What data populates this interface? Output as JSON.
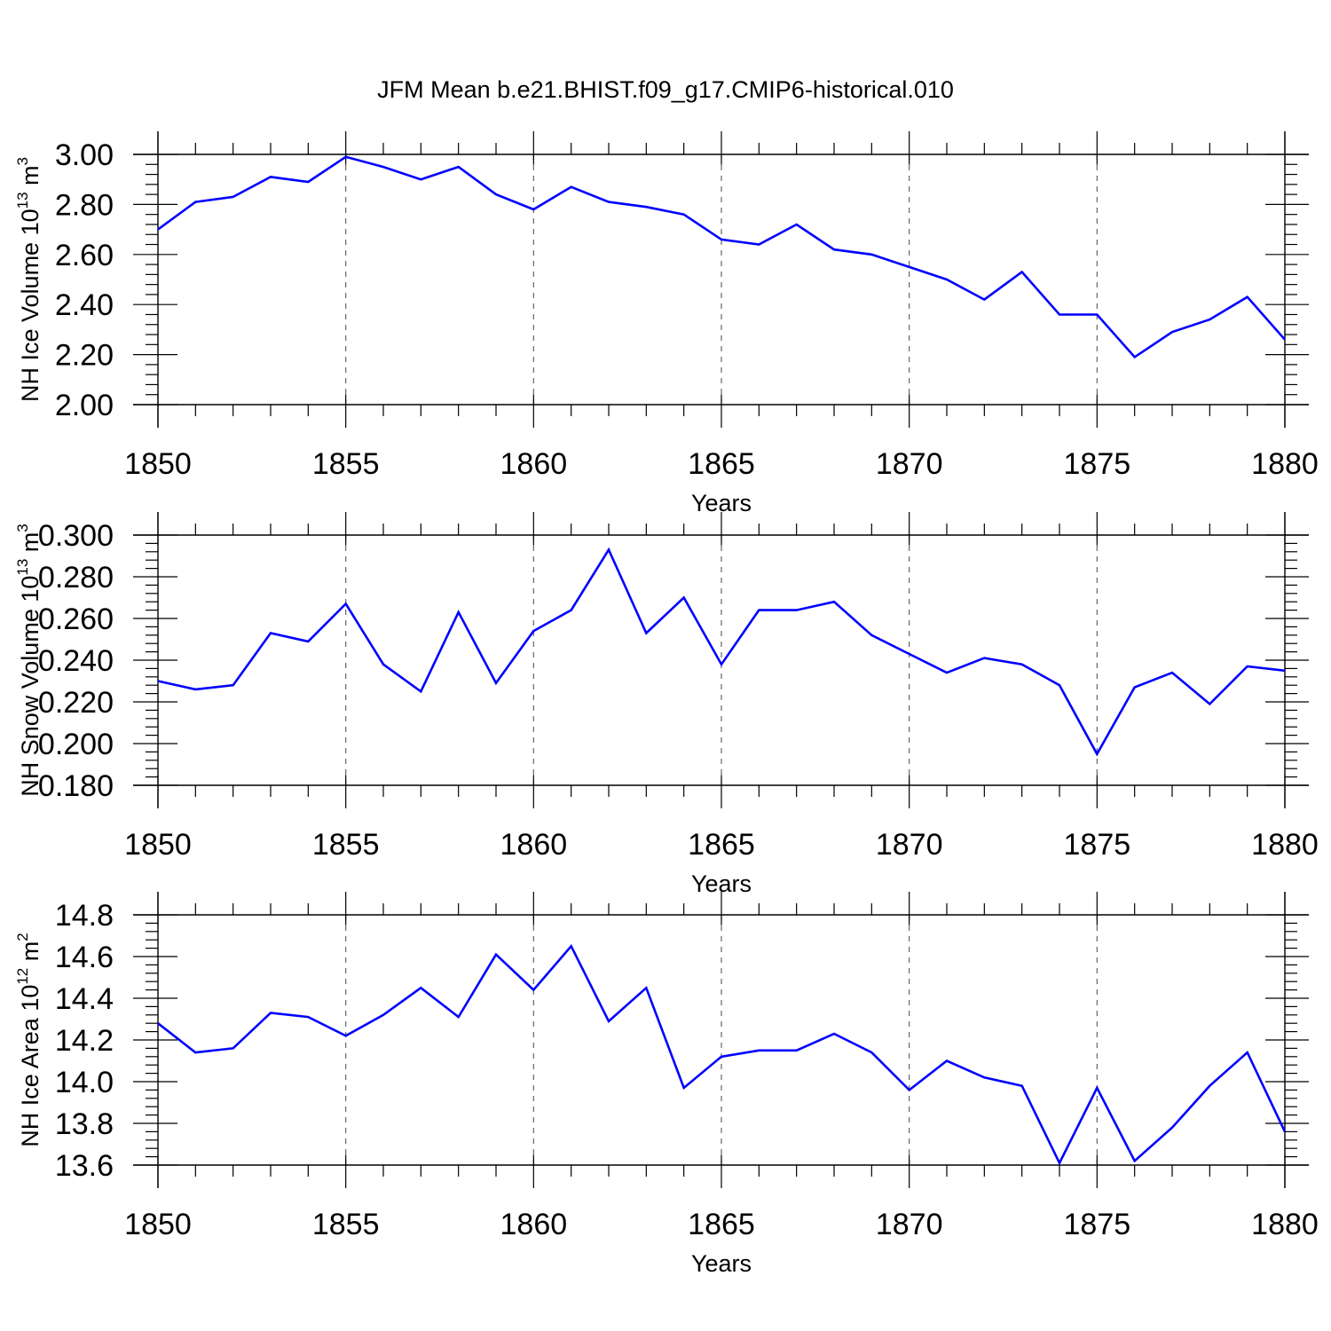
{
  "title": "JFM Mean b.e21.BHIST.f09_g17.CMIP6-historical.010",
  "colors": {
    "line": "#0000ff",
    "grid": "#666666",
    "axis": "#000000"
  },
  "chart_data": [
    {
      "type": "line",
      "xlabel": "Years",
      "ylabel": {
        "text": "NH Ice Volume 10",
        "exp": "13",
        "unit": " m",
        "unit_exp": "3"
      },
      "xlim": [
        1850,
        1880
      ],
      "ylim": [
        2.0,
        3.0
      ],
      "x_ticks": [
        1850,
        1855,
        1860,
        1865,
        1870,
        1875,
        1880
      ],
      "x_tick_labels": [
        "1850",
        "1855",
        "1860",
        "1865",
        "1870",
        "1875",
        "1880"
      ],
      "y_ticks": [
        2.0,
        2.2,
        2.4,
        2.6,
        2.8,
        3.0
      ],
      "y_tick_labels": [
        "2.00",
        "2.20",
        "2.40",
        "2.60",
        "2.80",
        "3.00"
      ],
      "grid": "vertical dashed at major x ticks",
      "x": [
        1850,
        1851,
        1852,
        1853,
        1854,
        1855,
        1856,
        1857,
        1858,
        1859,
        1860,
        1861,
        1862,
        1863,
        1864,
        1865,
        1866,
        1867,
        1868,
        1869,
        1870,
        1871,
        1872,
        1873,
        1874,
        1875,
        1876,
        1877,
        1878,
        1879,
        1880
      ],
      "values": [
        2.7,
        2.81,
        2.83,
        2.91,
        2.89,
        2.99,
        2.95,
        2.9,
        2.95,
        2.84,
        2.78,
        2.87,
        2.81,
        2.79,
        2.76,
        2.66,
        2.64,
        2.72,
        2.62,
        2.6,
        2.55,
        2.5,
        2.42,
        2.53,
        2.36,
        2.36,
        2.19,
        2.29,
        2.34,
        2.43,
        2.26
      ]
    },
    {
      "type": "line",
      "xlabel": "Years",
      "ylabel": {
        "text": "NH Snow Volume 10",
        "exp": "13",
        "unit": " m",
        "unit_exp": "3"
      },
      "xlim": [
        1850,
        1880
      ],
      "ylim": [
        0.18,
        0.3
      ],
      "x_ticks": [
        1850,
        1855,
        1860,
        1865,
        1870,
        1875,
        1880
      ],
      "x_tick_labels": [
        "1850",
        "1855",
        "1860",
        "1865",
        "1870",
        "1875",
        "1880"
      ],
      "y_ticks": [
        0.18,
        0.2,
        0.22,
        0.24,
        0.26,
        0.28,
        0.3
      ],
      "y_tick_labels": [
        "0.180",
        "0.200",
        "0.220",
        "0.240",
        "0.260",
        "0.280",
        "0.300"
      ],
      "grid": "vertical dashed at major x ticks",
      "x": [
        1850,
        1851,
        1852,
        1853,
        1854,
        1855,
        1856,
        1857,
        1858,
        1859,
        1860,
        1861,
        1862,
        1863,
        1864,
        1865,
        1866,
        1867,
        1868,
        1869,
        1870,
        1871,
        1872,
        1873,
        1874,
        1875,
        1876,
        1877,
        1878,
        1879,
        1880
      ],
      "values": [
        0.23,
        0.226,
        0.228,
        0.253,
        0.249,
        0.267,
        0.238,
        0.225,
        0.263,
        0.229,
        0.254,
        0.264,
        0.293,
        0.253,
        0.27,
        0.238,
        0.264,
        0.264,
        0.268,
        0.252,
        0.243,
        0.234,
        0.241,
        0.238,
        0.228,
        0.195,
        0.227,
        0.234,
        0.219,
        0.237,
        0.235
      ]
    },
    {
      "type": "line",
      "xlabel": "Years",
      "ylabel": {
        "text": "NH Ice Area 10",
        "exp": "12",
        "unit": " m",
        "unit_exp": "2"
      },
      "xlim": [
        1850,
        1880
      ],
      "ylim": [
        13.6,
        14.8
      ],
      "x_ticks": [
        1850,
        1855,
        1860,
        1865,
        1870,
        1875,
        1880
      ],
      "x_tick_labels": [
        "1850",
        "1855",
        "1860",
        "1865",
        "1870",
        "1875",
        "1880"
      ],
      "y_ticks": [
        13.6,
        13.8,
        14.0,
        14.2,
        14.4,
        14.6,
        14.8
      ],
      "y_tick_labels": [
        "13.6",
        "13.8",
        "14.0",
        "14.2",
        "14.4",
        "14.6",
        "14.8"
      ],
      "grid": "vertical dashed at major x ticks",
      "x": [
        1850,
        1851,
        1852,
        1853,
        1854,
        1855,
        1856,
        1857,
        1858,
        1859,
        1860,
        1861,
        1862,
        1863,
        1864,
        1865,
        1866,
        1867,
        1868,
        1869,
        1870,
        1871,
        1872,
        1873,
        1874,
        1875,
        1876,
        1877,
        1878,
        1879,
        1880
      ],
      "values": [
        14.28,
        14.14,
        14.16,
        14.33,
        14.31,
        14.22,
        14.32,
        14.45,
        14.31,
        14.61,
        14.44,
        14.65,
        14.29,
        14.45,
        13.97,
        14.12,
        14.15,
        14.15,
        14.23,
        14.14,
        13.96,
        14.1,
        14.02,
        13.98,
        13.61,
        13.97,
        13.62,
        13.78,
        13.98,
        14.14,
        13.76
      ]
    }
  ]
}
